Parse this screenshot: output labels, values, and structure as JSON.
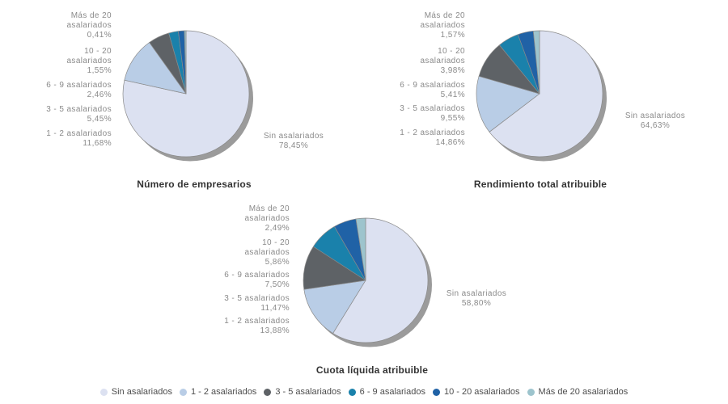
{
  "legend": {
    "items": [
      {
        "label": "Sin asalariados",
        "color": "#dce1f1"
      },
      {
        "label": "1 - 2 asalariados",
        "color": "#b9cde6"
      },
      {
        "label": "3 - 5 asalariados",
        "color": "#5e6266"
      },
      {
        "label": "6 - 9 asalariados",
        "color": "#1a81ab"
      },
      {
        "label": "10 - 20 asalariados",
        "color": "#2062a6"
      },
      {
        "label": "Más de 20 asalariados",
        "color": "#9dc4cd"
      }
    ]
  },
  "chart_data": [
    {
      "type": "pie",
      "title": "Número de empresarios",
      "categories": [
        "Sin asalariados",
        "1 - 2 asalariados",
        "3 - 5 asalariados",
        "6 - 9 asalariados",
        "10 - 20 asalariados",
        "Más de 20 asalariados"
      ],
      "values": [
        78.45,
        11.68,
        5.45,
        2.46,
        1.55,
        0.41
      ],
      "value_labels": [
        "78,45%",
        "11,68%",
        "5,45%",
        "2,46%",
        "1,55%",
        "0,41%"
      ],
      "colors": [
        "#dce1f1",
        "#b9cde6",
        "#5e6266",
        "#1a81ab",
        "#2062a6",
        "#9dc4cd"
      ],
      "start_angle_deg": 0,
      "direction": "clockwise",
      "left_label_blocks": [
        [
          "Más de 20",
          "asalariados",
          "0,41%"
        ],
        [
          "10 - 20",
          "asalariados",
          "1,55%"
        ],
        [
          "6 - 9 asalariados",
          "2,46%"
        ],
        [
          "3 - 5 asalariados",
          "5,45%"
        ],
        [
          "1 - 2 asalariados",
          "11,68%"
        ]
      ],
      "right_label_lines": [
        "Sin asalariados",
        "78,45%"
      ]
    },
    {
      "type": "pie",
      "title": "Rendimiento total atribuible",
      "categories": [
        "Sin asalariados",
        "1 - 2 asalariados",
        "3 - 5 asalariados",
        "6 - 9 asalariados",
        "10 - 20 asalariados",
        "Más de 20 asalariados"
      ],
      "values": [
        64.63,
        14.86,
        9.55,
        5.41,
        3.98,
        1.57
      ],
      "value_labels": [
        "64,63%",
        "14,86%",
        "9,55%",
        "5,41%",
        "3,98%",
        "1,57%"
      ],
      "colors": [
        "#dce1f1",
        "#b9cde6",
        "#5e6266",
        "#1a81ab",
        "#2062a6",
        "#9dc4cd"
      ],
      "start_angle_deg": 0,
      "direction": "clockwise",
      "left_label_blocks": [
        [
          "Más de 20",
          "asalariados",
          "1,57%"
        ],
        [
          "10 - 20",
          "asalariados",
          "3,98%"
        ],
        [
          "6 - 9 asalariados",
          "5,41%"
        ],
        [
          "3 - 5 asalariados",
          "9,55%"
        ],
        [
          "1 - 2 asalariados",
          "14,86%"
        ]
      ],
      "right_label_lines": [
        "Sin asalariados",
        "64,63%"
      ]
    },
    {
      "type": "pie",
      "title": "Cuota líquida atribuible",
      "categories": [
        "Sin asalariados",
        "1 - 2 asalariados",
        "3 - 5 asalariados",
        "6 - 9 asalariados",
        "10 - 20 asalariados",
        "Más de 20 asalariados"
      ],
      "values": [
        58.8,
        13.88,
        11.47,
        7.5,
        5.86,
        2.49
      ],
      "value_labels": [
        "58,80%",
        "13,88%",
        "11,47%",
        "7,50%",
        "5,86%",
        "2,49%"
      ],
      "colors": [
        "#dce1f1",
        "#b9cde6",
        "#5e6266",
        "#1a81ab",
        "#2062a6",
        "#9dc4cd"
      ],
      "start_angle_deg": 0,
      "direction": "clockwise",
      "left_label_blocks": [
        [
          "Más de 20",
          "asalariados",
          "2,49%"
        ],
        [
          "10 - 20",
          "asalariados",
          "5,86%"
        ],
        [
          "6 - 9 asalariados",
          "7,50%"
        ],
        [
          "3 - 5 asalariados",
          "11,47%"
        ],
        [
          "1 - 2 asalariados",
          "13,88%"
        ]
      ],
      "right_label_lines": [
        "Sin asalariados",
        "58,80%"
      ]
    }
  ],
  "style": {
    "shadow_color": "#9b9b9b",
    "slice_border_color": "#8a8a8a"
  }
}
